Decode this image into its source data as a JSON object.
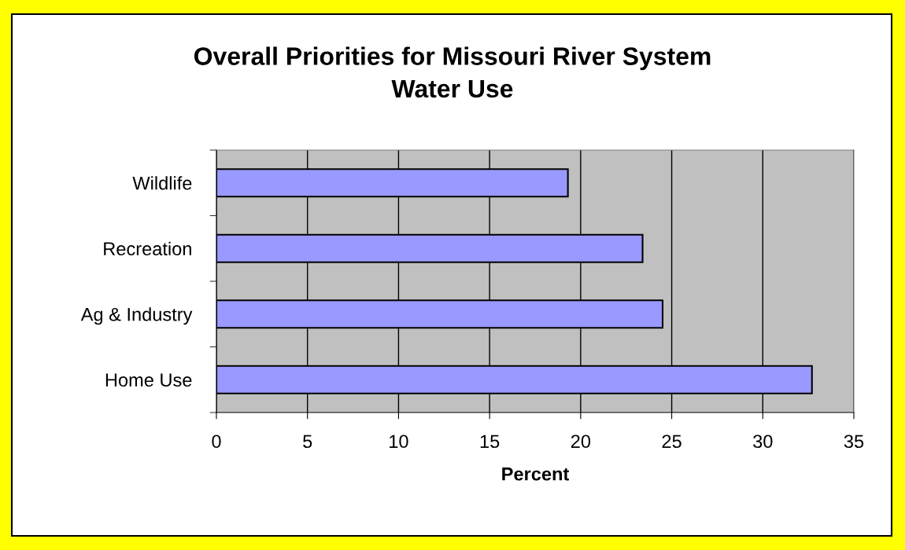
{
  "chart_data": {
    "type": "bar",
    "orientation": "horizontal",
    "title": "Overall Priorities for Missouri River System\nWater Use",
    "xlabel": "Percent",
    "categories": [
      "Wildlife",
      "Recreation",
      "Ag & Industry",
      "Home Use"
    ],
    "values": [
      19.3,
      23.4,
      24.5,
      32.7
    ],
    "color": "#9999ff",
    "xlim": [
      0,
      35
    ],
    "xticks": [
      0,
      5,
      10,
      15,
      20,
      25,
      30,
      35
    ],
    "grid": "x"
  }
}
